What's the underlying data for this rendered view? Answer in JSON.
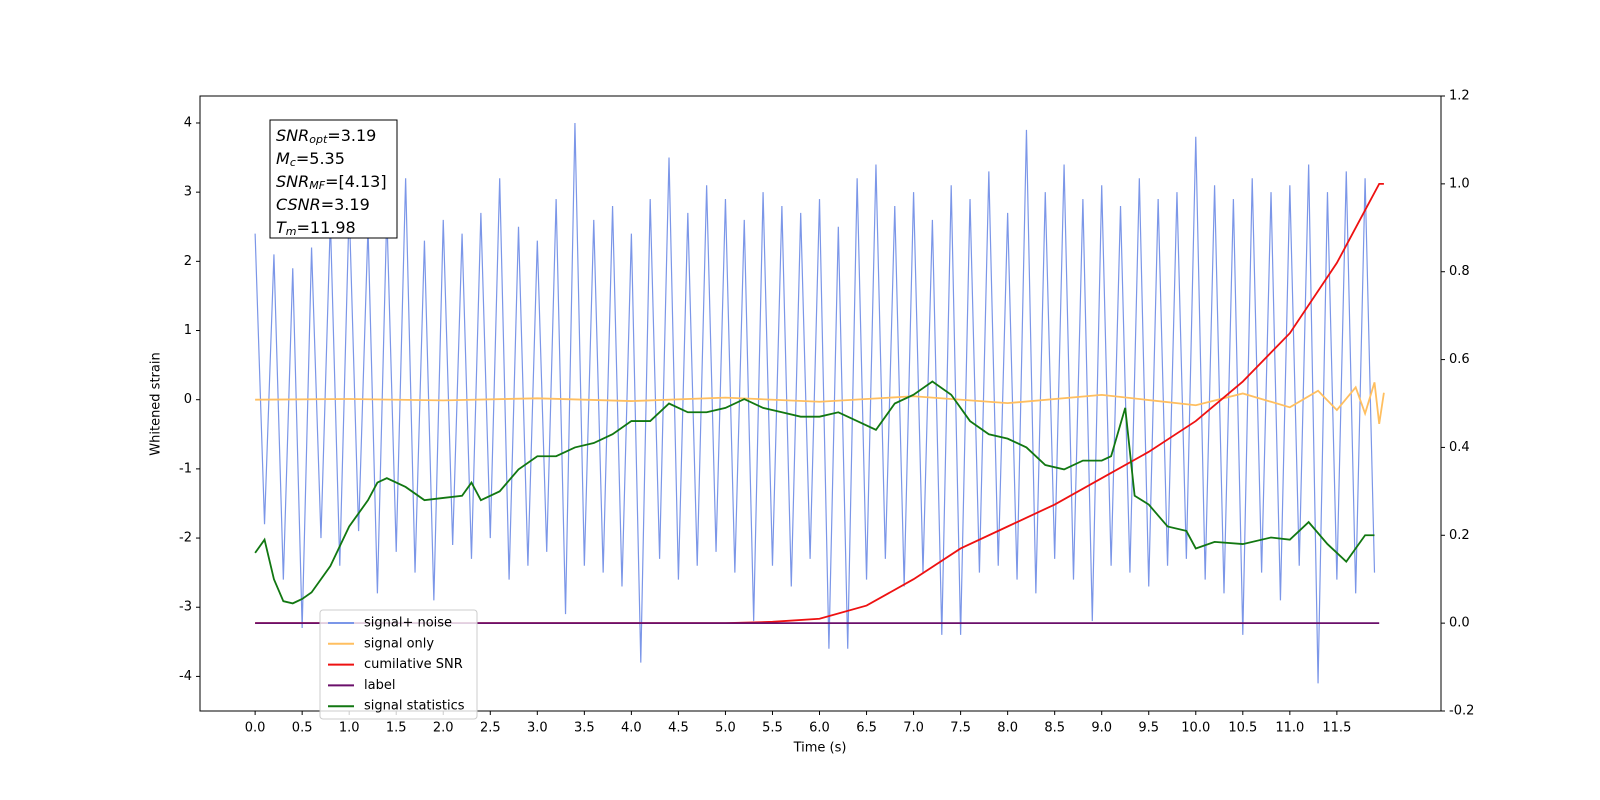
{
  "chart_data": {
    "type": "line",
    "xlabel": "Time (s)",
    "ylabel": "Whitened strain",
    "xlim": [
      -0.586,
      12.607
    ],
    "ylim": [
      -4.5,
      4.39
    ],
    "y2lim": [
      -0.2,
      1.2
    ],
    "xticks": [
      {
        "value": 0,
        "label": "0.0"
      },
      0.5,
      {
        "value": 1,
        "label": "1.0"
      },
      1.5,
      {
        "value": 2,
        "label": "2.0"
      },
      2.5,
      {
        "value": 3,
        "label": "3.0"
      },
      3.5,
      {
        "value": 4,
        "label": "4.0"
      },
      4.5,
      {
        "value": 5,
        "label": "5.0"
      },
      5.5,
      {
        "value": 6,
        "label": "6.0"
      },
      6.5,
      {
        "value": 7,
        "label": "7.0"
      },
      7.5,
      {
        "value": 8,
        "label": "8.0"
      },
      8.5,
      {
        "value": 9,
        "label": "9.0"
      },
      9.5,
      {
        "value": 10,
        "label": "10.0"
      },
      10.5,
      {
        "value": 11,
        "label": "11.0"
      },
      11.5
    ],
    "yticks": [
      4,
      3,
      2,
      1,
      0,
      -1,
      -2,
      -3,
      -4
    ],
    "y2ticks": [
      1.2,
      {
        "value": 1,
        "label": "1.0"
      },
      0.8,
      0.6,
      0.4,
      0.2,
      {
        "value": 0,
        "label": "0.0"
      },
      -0.2
    ],
    "legend_loc": "lower left",
    "annotations": [
      {
        "symbol": "SNR",
        "sub": "opt",
        "text": "=3.19"
      },
      {
        "symbol": "M",
        "sub": "c",
        "text": "=5.35"
      },
      {
        "symbol": "SNR",
        "sub": "MF",
        "text": "=[4.13]"
      },
      {
        "symbol": "CSNR",
        "text": "=3.19"
      },
      {
        "symbol": "T",
        "sub": "m",
        "text": "=11.98"
      }
    ],
    "series": [
      {
        "name": "signal+ noise",
        "color": "#7b96e8",
        "x": [
          0,
          0.1,
          0.2,
          0.3,
          0.4,
          0.5,
          0.6,
          0.7,
          0.8,
          0.9,
          1,
          1.1,
          1.2,
          1.3,
          1.4,
          1.5,
          1.6,
          1.7,
          1.8,
          1.9,
          2,
          2.1,
          2.2,
          2.3,
          2.4,
          2.5,
          2.6,
          2.7,
          2.8,
          2.9,
          3,
          3.1,
          3.2,
          3.3,
          3.4,
          3.5,
          3.6,
          3.7,
          3.8,
          3.9,
          4,
          4.1,
          4.2,
          4.3,
          4.4,
          4.5,
          4.6,
          4.7,
          4.8,
          4.9,
          5,
          5.1,
          5.2,
          5.3,
          5.4,
          5.5,
          5.6,
          5.7,
          5.8,
          5.9,
          6,
          6.1,
          6.2,
          6.3,
          6.4,
          6.5,
          6.6,
          6.7,
          6.8,
          6.9,
          7,
          7.1,
          7.2,
          7.3,
          7.4,
          7.5,
          7.6,
          7.7,
          7.8,
          7.9,
          8,
          8.1,
          8.2,
          8.3,
          8.4,
          8.5,
          8.6,
          8.7,
          8.8,
          8.9,
          9,
          9.1,
          9.2,
          9.3,
          9.4,
          9.5,
          9.6,
          9.7,
          9.8,
          9.9,
          10,
          10.1,
          10.2,
          10.3,
          10.4,
          10.5,
          10.6,
          10.7,
          10.8,
          10.9,
          11,
          11.1,
          11.2,
          11.3,
          11.4,
          11.5,
          11.6,
          11.7,
          11.8,
          11.9
        ],
        "values": [
          2.4,
          -1.8,
          2.1,
          -2.6,
          1.9,
          -3.3,
          2.2,
          -2.0,
          2.6,
          -2.4,
          2.8,
          -1.9,
          2.5,
          -2.8,
          2.7,
          -2.2,
          3.2,
          -2.5,
          2.3,
          -2.9,
          2.6,
          -2.1,
          2.4,
          -2.3,
          2.7,
          -2.0,
          3.2,
          -2.6,
          2.5,
          -2.4,
          2.3,
          -2.2,
          2.9,
          -3.1,
          4.0,
          -2.4,
          2.6,
          -2.5,
          2.8,
          -2.7,
          2.4,
          -3.8,
          2.9,
          -2.3,
          3.5,
          -2.6,
          2.7,
          -2.4,
          3.1,
          -2.2,
          2.9,
          -2.5,
          2.6,
          -3.2,
          3.0,
          -2.4,
          2.8,
          -2.7,
          2.7,
          -2.3,
          2.9,
          -3.6,
          2.5,
          -3.6,
          3.2,
          -2.6,
          3.4,
          -2.3,
          2.8,
          -2.7,
          3.0,
          -2.5,
          2.6,
          -3.4,
          3.1,
          -3.4,
          2.9,
          -2.5,
          3.3,
          -2.4,
          2.7,
          -2.6,
          3.9,
          -2.8,
          3.0,
          -2.3,
          3.4,
          -2.6,
          2.9,
          -3.2,
          3.1,
          -2.4,
          2.8,
          -2.5,
          3.2,
          -2.7,
          2.9,
          -2.4,
          3.0,
          -2.3,
          3.8,
          -2.6,
          3.1,
          -2.8,
          2.9,
          -3.4,
          3.2,
          -2.5,
          3.0,
          -2.9,
          3.1,
          -2.4,
          3.4,
          -4.1,
          3.0,
          -2.6,
          3.3,
          -2.8,
          3.2,
          -2.5
        ]
      },
      {
        "name": "signal only",
        "color": "#ffbf60",
        "x": [
          0,
          1,
          2,
          3,
          4,
          5,
          6,
          7,
          8,
          9,
          10,
          10.5,
          11,
          11.3,
          11.5,
          11.7,
          11.8,
          11.9,
          11.95,
          12.0
        ],
        "values": [
          0,
          0.01,
          -0.01,
          0.02,
          -0.02,
          0.03,
          -0.03,
          0.05,
          -0.05,
          0.07,
          -0.08,
          0.09,
          -0.11,
          0.13,
          -0.15,
          0.18,
          -0.2,
          0.25,
          -0.35,
          0.1
        ]
      },
      {
        "name": "cumilative SNR",
        "color": "#ee1111",
        "axis": "y2",
        "x": [
          0,
          5,
          5.5,
          6,
          6.5,
          7,
          7.5,
          8,
          8.5,
          9,
          9.5,
          10,
          10.5,
          11,
          11.5,
          11.8,
          11.95,
          12.0
        ],
        "values": [
          0,
          0,
          0.003,
          0.01,
          0.04,
          0.1,
          0.17,
          0.22,
          0.27,
          0.33,
          0.39,
          0.46,
          0.55,
          0.66,
          0.82,
          0.94,
          1.0,
          1.0
        ]
      },
      {
        "name": "label",
        "color": "#6a0f6a",
        "axis": "y2",
        "x": [
          0,
          11.95
        ],
        "values": [
          0,
          0
        ]
      },
      {
        "name": "signal statistics",
        "color": "#117711",
        "axis": "y2",
        "x": [
          0,
          0.1,
          0.2,
          0.3,
          0.4,
          0.5,
          0.6,
          0.8,
          1.0,
          1.2,
          1.3,
          1.4,
          1.6,
          1.8,
          2.0,
          2.2,
          2.3,
          2.4,
          2.6,
          2.8,
          3.0,
          3.2,
          3.4,
          3.6,
          3.8,
          4.0,
          4.2,
          4.4,
          4.6,
          4.8,
          5.0,
          5.2,
          5.4,
          5.6,
          5.8,
          6.0,
          6.2,
          6.4,
          6.6,
          6.8,
          7.0,
          7.2,
          7.4,
          7.6,
          7.8,
          8.0,
          8.2,
          8.4,
          8.6,
          8.8,
          9.0,
          9.1,
          9.25,
          9.35,
          9.5,
          9.7,
          9.9,
          10.0,
          10.2,
          10.5,
          10.8,
          11.0,
          11.2,
          11.4,
          11.6,
          11.8,
          11.9
        ],
        "values": [
          0.16,
          0.19,
          0.1,
          0.05,
          0.045,
          0.055,
          0.07,
          0.13,
          0.22,
          0.28,
          0.32,
          0.33,
          0.31,
          0.28,
          0.285,
          0.29,
          0.32,
          0.28,
          0.3,
          0.35,
          0.38,
          0.38,
          0.4,
          0.41,
          0.43,
          0.46,
          0.46,
          0.5,
          0.48,
          0.48,
          0.49,
          0.51,
          0.49,
          0.48,
          0.47,
          0.47,
          0.48,
          0.46,
          0.44,
          0.5,
          0.52,
          0.55,
          0.52,
          0.46,
          0.43,
          0.42,
          0.4,
          0.36,
          0.35,
          0.37,
          0.37,
          0.38,
          0.49,
          0.29,
          0.27,
          0.22,
          0.21,
          0.17,
          0.185,
          0.18,
          0.195,
          0.19,
          0.23,
          0.18,
          0.14,
          0.2,
          0.2
        ]
      }
    ]
  }
}
